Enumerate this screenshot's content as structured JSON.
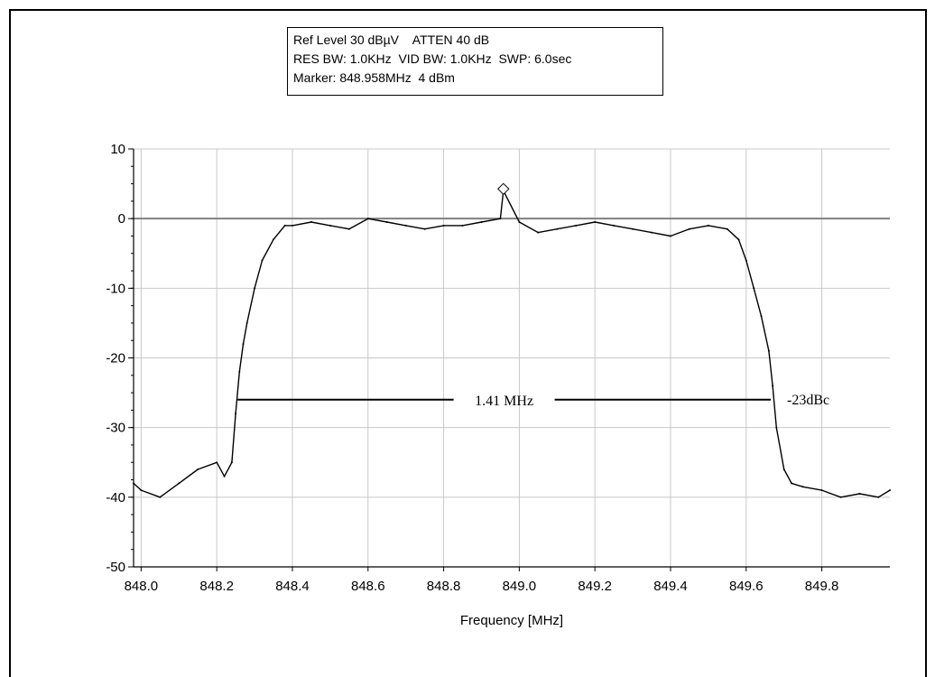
{
  "header": {
    "line1": "Ref Level 30 dBµV    ATTEN 40 dB",
    "line2": "RES BW: 1.0KHz  VID BW: 1.0KHz  SWP: 6.0sec",
    "line3": "Marker: 848.958MHz  4 dBm"
  },
  "chart_data": {
    "type": "line",
    "title": "",
    "xlabel": "Frequency [MHz]",
    "ylabel": "",
    "xlim": [
      847.98,
      849.98
    ],
    "ylim": [
      -50,
      10
    ],
    "x_ticks": [
      848.0,
      848.2,
      848.4,
      848.6,
      848.8,
      849.0,
      849.2,
      849.4,
      849.6,
      849.8
    ],
    "x_tick_labels": [
      "848.0",
      "848.2",
      "848.4",
      "848.6",
      "848.8",
      "849.0",
      "849.2",
      "849.4",
      "849.6",
      "849.8"
    ],
    "y_ticks": [
      10,
      0,
      -10,
      -20,
      -30,
      -40,
      -50
    ],
    "y_tick_labels": [
      "10",
      "0",
      "-10",
      "-20",
      "-30",
      "-40",
      "-50"
    ],
    "grid": true,
    "colors": {
      "trace": "#000000",
      "grid": "#c8c8c8",
      "zero_line": "#808080"
    },
    "series": [
      {
        "x": [
          847.98,
          848.0,
          848.05,
          848.1,
          848.15,
          848.2,
          848.22,
          848.24,
          848.25,
          848.26,
          848.27,
          848.28,
          848.3,
          848.32,
          848.35,
          848.38,
          848.4,
          848.45,
          848.5,
          848.55,
          848.6,
          848.65,
          848.7,
          848.75,
          848.8,
          848.85,
          848.9,
          848.95,
          848.958,
          849.0,
          849.05,
          849.1,
          849.15,
          849.2,
          849.25,
          849.3,
          849.35,
          849.4,
          849.45,
          849.5,
          849.55,
          849.58,
          849.6,
          849.62,
          849.64,
          849.66,
          849.67,
          849.68,
          849.7,
          849.72,
          849.75,
          849.8,
          849.85,
          849.9,
          849.95,
          849.98
        ],
        "y": [
          -38,
          -39,
          -40,
          -38,
          -36,
          -35,
          -37,
          -35,
          -28,
          -22,
          -18,
          -15,
          -10,
          -6,
          -3,
          -1,
          -1,
          -0.5,
          -1,
          -1.5,
          0,
          -0.5,
          -1,
          -1.5,
          -1,
          -1,
          -0.5,
          0,
          4,
          -0.5,
          -2,
          -1.5,
          -1,
          -0.5,
          -1,
          -1.5,
          -2,
          -2.5,
          -1.5,
          -1,
          -1.5,
          -3,
          -6,
          -10,
          -14,
          -19,
          -24,
          -30,
          -36,
          -38,
          -38.5,
          -39,
          -40,
          -39.5,
          -40,
          -39
        ]
      }
    ],
    "marker": {
      "x": 848.958,
      "y": 4,
      "label": "848.958MHz 4 dBm"
    },
    "annotations": [
      {
        "type": "bandwidth",
        "x_start": 848.255,
        "x_end": 849.665,
        "y": -26,
        "label": "1.41 MHz"
      },
      {
        "type": "text",
        "label": "-23dBc",
        "y": -26
      }
    ]
  }
}
